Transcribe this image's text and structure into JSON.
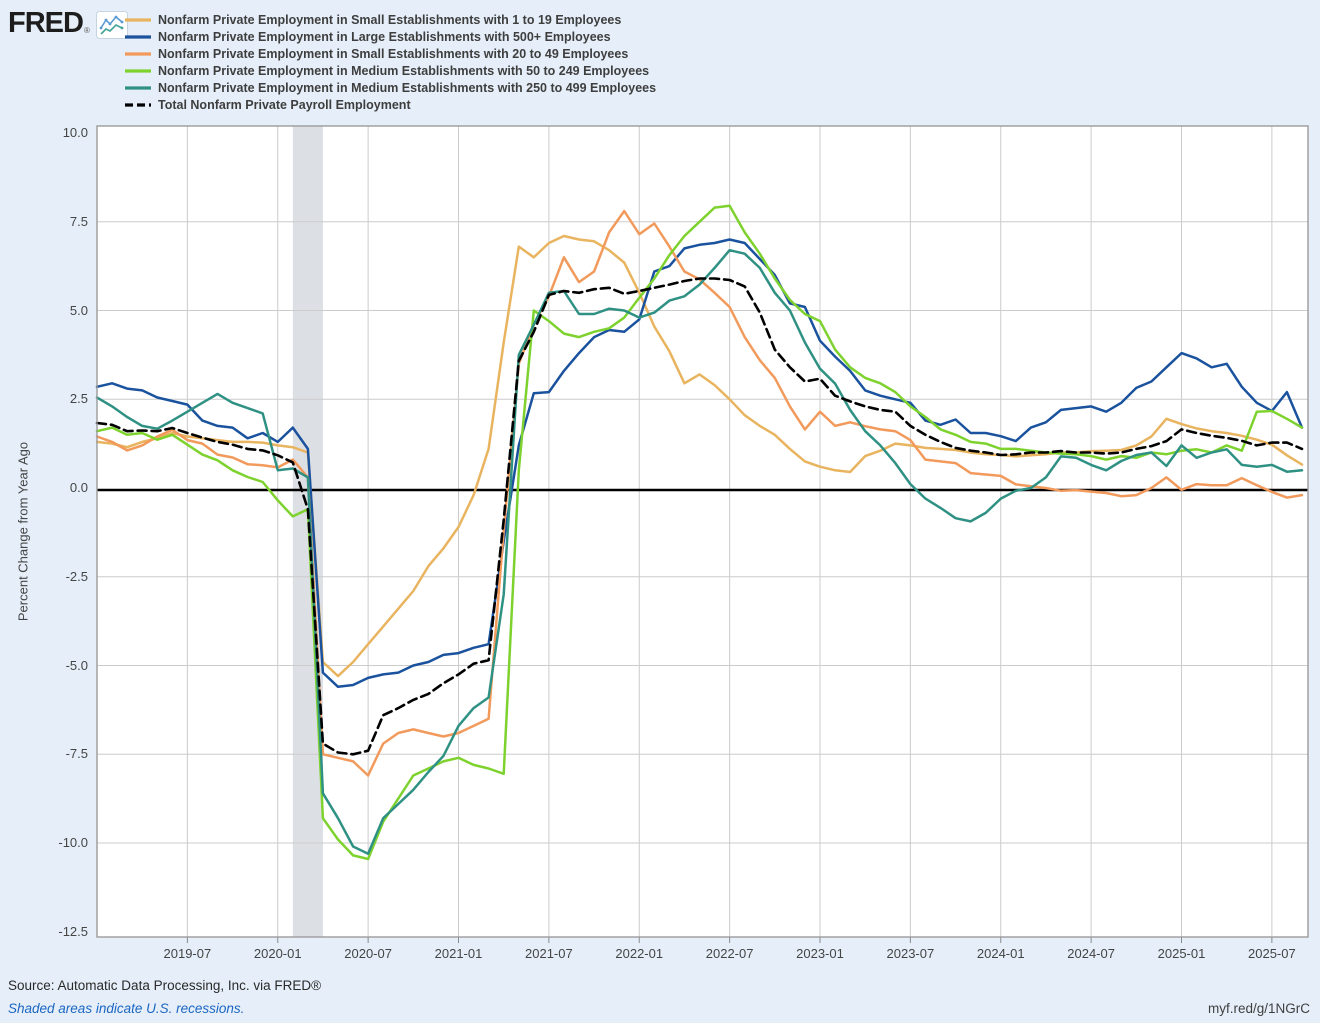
{
  "header": {
    "logo_text": "FRED",
    "registered_mark": "®",
    "chart_icon": "fred-sparkline-icon"
  },
  "legend": {
    "items": [
      {
        "label": "Nonfarm Private Employment in Small Establishments with 1 to 19 Employees",
        "color": "#e9b45f",
        "dashed": false
      },
      {
        "label": "Nonfarm Private Employment in Large Establishments with 500+ Employees",
        "color": "#1a529e",
        "dashed": false
      },
      {
        "label": "Nonfarm Private Employment in Small Establishments with 20 to 49 Employees",
        "color": "#f29a5c",
        "dashed": false
      },
      {
        "label": "Nonfarm Private Employment in Medium Establishments with 50 to 249 Employees",
        "color": "#7ed22e",
        "dashed": false
      },
      {
        "label": "Nonfarm Private Employment in Medium Establishments with 250 to 499 Employees",
        "color": "#2f9183",
        "dashed": false
      },
      {
        "label": "Total Nonfarm Private Payroll Employment",
        "color": "#000000",
        "dashed": true
      }
    ]
  },
  "chart_data": {
    "type": "line",
    "title": "",
    "xlabel": "",
    "ylabel": "Percent Change from Year Ago",
    "ylim": [
      -12.5,
      10.0
    ],
    "grid": true,
    "legend_position": "top-left",
    "y_ticks": [
      10.0,
      7.5,
      5.0,
      2.5,
      0.0,
      -2.5,
      -5.0,
      -7.5,
      -10.0,
      -12.5
    ],
    "y_tick_labels": [
      "10.0",
      "7.5",
      "5.0",
      "2.5",
      "0.0",
      "-2.5",
      "-5.0",
      "-7.5",
      "-10.0",
      "-12.5"
    ],
    "x_tick_months": [
      "2019-07",
      "2020-01",
      "2020-07",
      "2021-01",
      "2021-07",
      "2022-01",
      "2022-07",
      "2023-01",
      "2023-07",
      "2024-01",
      "2024-07",
      "2025-01",
      "2025-07"
    ],
    "recession_band": {
      "from": "2020-02",
      "to": "2020-04",
      "color": "#dcdfe4"
    },
    "zero_line_color": "#000000",
    "gridline_color": "#cccccc",
    "months": [
      "2019-01",
      "2019-02",
      "2019-03",
      "2019-04",
      "2019-05",
      "2019-06",
      "2019-07",
      "2019-08",
      "2019-09",
      "2019-10",
      "2019-11",
      "2019-12",
      "2020-01",
      "2020-02",
      "2020-03",
      "2020-04",
      "2020-05",
      "2020-06",
      "2020-07",
      "2020-08",
      "2020-09",
      "2020-10",
      "2020-11",
      "2020-12",
      "2021-01",
      "2021-02",
      "2021-03",
      "2021-04",
      "2021-05",
      "2021-06",
      "2021-07",
      "2021-08",
      "2021-09",
      "2021-10",
      "2021-11",
      "2021-12",
      "2022-01",
      "2022-02",
      "2022-03",
      "2022-04",
      "2022-05",
      "2022-06",
      "2022-07",
      "2022-08",
      "2022-09",
      "2022-10",
      "2022-11",
      "2022-12",
      "2023-01",
      "2023-02",
      "2023-03",
      "2023-04",
      "2023-05",
      "2023-06",
      "2023-07",
      "2023-08",
      "2023-09",
      "2023-10",
      "2023-11",
      "2023-12",
      "2024-01",
      "2024-02",
      "2024-03",
      "2024-04",
      "2024-05",
      "2024-06",
      "2024-07",
      "2024-08",
      "2024-09",
      "2024-10",
      "2024-11",
      "2024-12",
      "2025-01",
      "2025-02",
      "2025-03",
      "2025-04",
      "2025-05",
      "2025-06",
      "2025-07",
      "2025-08",
      "2025-09"
    ],
    "series": [
      {
        "name": "Nonfarm Private Employment in Small Establishments with 1 to 19 Employees",
        "color": "#e9b45f",
        "dashed": false,
        "values": [
          1.3,
          1.25,
          1.15,
          1.3,
          1.4,
          1.55,
          1.45,
          1.4,
          1.35,
          1.3,
          1.3,
          1.28,
          1.2,
          1.15,
          1.0,
          -4.9,
          -5.3,
          -4.9,
          -4.4,
          -3.9,
          -3.4,
          -2.9,
          -2.2,
          -1.7,
          -1.1,
          -0.2,
          1.1,
          4.1,
          6.8,
          6.5,
          6.9,
          7.1,
          7.0,
          6.95,
          6.7,
          6.35,
          5.5,
          4.55,
          3.85,
          2.95,
          3.2,
          2.9,
          2.5,
          2.05,
          1.75,
          1.5,
          1.1,
          0.75,
          0.6,
          0.5,
          0.45,
          0.9,
          1.05,
          1.25,
          1.2,
          1.13,
          1.1,
          1.07,
          1.0,
          0.95,
          0.93,
          0.89,
          0.92,
          0.95,
          1.0,
          1.0,
          1.04,
          1.05,
          1.07,
          1.2,
          1.45,
          1.95,
          1.8,
          1.68,
          1.6,
          1.55,
          1.47,
          1.36,
          1.22,
          0.92,
          0.66
        ]
      },
      {
        "name": "Nonfarm Private Employment in Large Establishments with 500+ Employees",
        "color": "#1a529e",
        "dashed": false,
        "values": [
          2.85,
          2.95,
          2.8,
          2.75,
          2.55,
          2.45,
          2.35,
          1.9,
          1.75,
          1.7,
          1.4,
          1.55,
          1.3,
          1.7,
          1.1,
          -5.2,
          -5.6,
          -5.55,
          -5.35,
          -5.25,
          -5.2,
          -5.0,
          -4.9,
          -4.7,
          -4.65,
          -4.5,
          -4.4,
          -1.5,
          1.2,
          2.67,
          2.7,
          3.3,
          3.8,
          4.25,
          4.45,
          4.4,
          4.75,
          6.1,
          6.25,
          6.75,
          6.85,
          6.9,
          7.0,
          6.9,
          6.45,
          6.0,
          5.2,
          5.1,
          4.15,
          3.7,
          3.3,
          2.75,
          2.6,
          2.5,
          2.4,
          1.9,
          1.78,
          1.93,
          1.55,
          1.55,
          1.46,
          1.32,
          1.7,
          1.85,
          2.2,
          2.25,
          2.3,
          2.15,
          2.4,
          2.82,
          3.0,
          3.4,
          3.8,
          3.65,
          3.4,
          3.5,
          2.85,
          2.4,
          2.17,
          2.7,
          1.7
        ]
      },
      {
        "name": "Nonfarm Private Employment in Small Establishments with 20 to 49 Employees",
        "color": "#f29a5c",
        "dashed": false,
        "values": [
          1.45,
          1.3,
          1.06,
          1.2,
          1.45,
          1.64,
          1.35,
          1.25,
          0.94,
          0.86,
          0.67,
          0.64,
          0.58,
          0.8,
          0.3,
          -7.5,
          -7.6,
          -7.7,
          -8.1,
          -7.2,
          -6.9,
          -6.8,
          -6.9,
          -7.0,
          -6.9,
          -6.7,
          -6.5,
          -1.2,
          3.5,
          4.6,
          5.4,
          6.5,
          5.8,
          6.1,
          7.2,
          7.8,
          7.15,
          7.45,
          6.8,
          6.1,
          5.88,
          5.5,
          5.1,
          4.25,
          3.6,
          3.1,
          2.3,
          1.65,
          2.15,
          1.75,
          1.85,
          1.74,
          1.65,
          1.6,
          1.35,
          0.8,
          0.75,
          0.7,
          0.42,
          0.38,
          0.34,
          0.1,
          0.05,
          0.0,
          -0.08,
          -0.06,
          -0.1,
          -0.14,
          -0.23,
          -0.2,
          0.0,
          0.3,
          -0.05,
          0.11,
          0.08,
          0.08,
          0.28,
          0.08,
          -0.11,
          -0.27,
          -0.2
        ]
      },
      {
        "name": "Nonfarm Private Employment in Medium Establishments with 50 to 249 Employees",
        "color": "#7ed22e",
        "dashed": false,
        "values": [
          1.6,
          1.7,
          1.5,
          1.55,
          1.36,
          1.5,
          1.22,
          0.94,
          0.78,
          0.5,
          0.31,
          0.17,
          -0.35,
          -0.8,
          -0.6,
          -9.3,
          -9.9,
          -10.35,
          -10.45,
          -9.4,
          -8.75,
          -8.1,
          -7.9,
          -7.7,
          -7.6,
          -7.8,
          -7.9,
          -8.05,
          0.5,
          5.0,
          4.7,
          4.35,
          4.25,
          4.4,
          4.5,
          4.8,
          5.36,
          5.9,
          6.56,
          7.1,
          7.5,
          7.9,
          7.95,
          7.2,
          6.6,
          5.9,
          5.3,
          4.9,
          4.7,
          3.9,
          3.4,
          3.1,
          2.95,
          2.7,
          2.3,
          2.0,
          1.65,
          1.5,
          1.3,
          1.25,
          1.1,
          1.1,
          1.05,
          1.0,
          0.97,
          0.95,
          0.9,
          0.8,
          0.9,
          0.85,
          1.0,
          0.95,
          1.05,
          1.09,
          1.0,
          1.2,
          1.05,
          2.15,
          2.17,
          1.95,
          1.7
        ]
      },
      {
        "name": "Nonfarm Private Employment in Medium Establishments with 250 to 499 Employees",
        "color": "#2f9183",
        "dashed": false,
        "values": [
          2.55,
          2.3,
          2.0,
          1.75,
          1.67,
          1.9,
          2.15,
          2.4,
          2.65,
          2.4,
          2.25,
          2.1,
          0.5,
          0.55,
          0.3,
          -8.6,
          -9.3,
          -10.1,
          -10.3,
          -9.3,
          -8.9,
          -8.5,
          -8.0,
          -7.55,
          -6.7,
          -6.2,
          -5.9,
          -3.0,
          3.75,
          4.6,
          5.5,
          5.55,
          4.9,
          4.9,
          5.05,
          5.0,
          4.8,
          4.94,
          5.28,
          5.4,
          5.73,
          6.2,
          6.7,
          6.6,
          6.2,
          5.5,
          5.0,
          4.1,
          3.36,
          2.94,
          2.2,
          1.6,
          1.2,
          0.7,
          0.11,
          -0.3,
          -0.56,
          -0.85,
          -0.94,
          -0.7,
          -0.3,
          -0.08,
          0.0,
          0.3,
          0.89,
          0.85,
          0.65,
          0.5,
          0.76,
          0.93,
          1.0,
          0.62,
          1.2,
          0.85,
          1.0,
          1.09,
          0.65,
          0.6,
          0.65,
          0.46,
          0.5
        ]
      },
      {
        "name": "Total Nonfarm Private Payroll Employment",
        "color": "#000000",
        "dashed": true,
        "values": [
          1.83,
          1.78,
          1.6,
          1.62,
          1.6,
          1.69,
          1.55,
          1.42,
          1.3,
          1.22,
          1.1,
          1.06,
          0.92,
          0.72,
          -0.6,
          -7.2,
          -7.45,
          -7.5,
          -7.4,
          -6.4,
          -6.2,
          -5.97,
          -5.8,
          -5.5,
          -5.25,
          -4.95,
          -4.85,
          -0.9,
          3.58,
          4.4,
          5.44,
          5.55,
          5.5,
          5.6,
          5.64,
          5.47,
          5.55,
          5.64,
          5.73,
          5.83,
          5.9,
          5.9,
          5.86,
          5.68,
          4.94,
          3.9,
          3.4,
          3.0,
          3.08,
          2.6,
          2.44,
          2.3,
          2.2,
          2.15,
          1.75,
          1.5,
          1.3,
          1.13,
          1.05,
          1.0,
          0.93,
          0.95,
          1.0,
          1.0,
          1.04,
          1.0,
          1.0,
          0.97,
          1.0,
          1.1,
          1.18,
          1.32,
          1.65,
          1.55,
          1.47,
          1.41,
          1.33,
          1.2,
          1.28,
          1.28,
          1.1
        ]
      }
    ]
  },
  "footer": {
    "source": "Source: Automatic Data Processing, Inc. via FRED®",
    "recession_note": "Shaded areas indicate U.S. recessions.",
    "permalink": "myf.red/g/1NGrC"
  }
}
